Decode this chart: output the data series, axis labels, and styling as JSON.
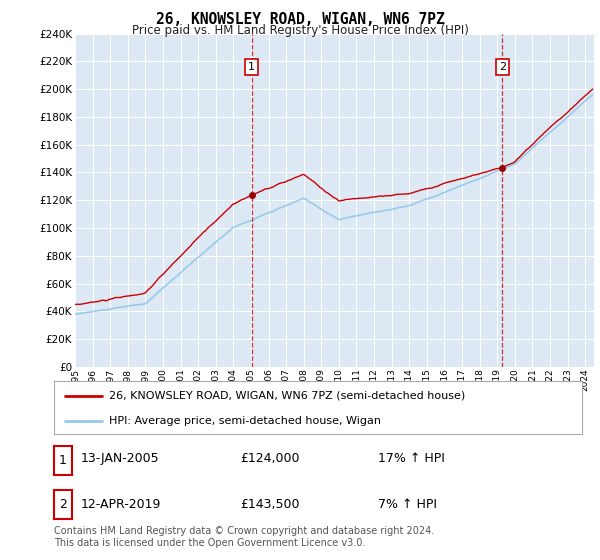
{
  "title": "26, KNOWSLEY ROAD, WIGAN, WN6 7PZ",
  "subtitle": "Price paid vs. HM Land Registry's House Price Index (HPI)",
  "bg_color": "#dce9f5",
  "outer_bg_color": "#ffffff",
  "red_line_label": "26, KNOWSLEY ROAD, WIGAN, WN6 7PZ (semi-detached house)",
  "blue_line_label": "HPI: Average price, semi-detached house, Wigan",
  "footnote": "Contains HM Land Registry data © Crown copyright and database right 2024.\nThis data is licensed under the Open Government Licence v3.0.",
  "point1_date": "13-JAN-2005",
  "point1_price": "£124,000",
  "point1_hpi": "17% ↑ HPI",
  "point1_year": 2005.04,
  "point1_value": 124000,
  "point2_date": "12-APR-2019",
  "point2_price": "£143,500",
  "point2_hpi": "7% ↑ HPI",
  "point2_year": 2019.29,
  "point2_value": 143500,
  "ylim": [
    0,
    240000
  ],
  "yticks": [
    0,
    20000,
    40000,
    60000,
    80000,
    100000,
    120000,
    140000,
    160000,
    180000,
    200000,
    220000,
    240000
  ],
  "xlim_start": 1995.0,
  "xlim_end": 2024.5
}
